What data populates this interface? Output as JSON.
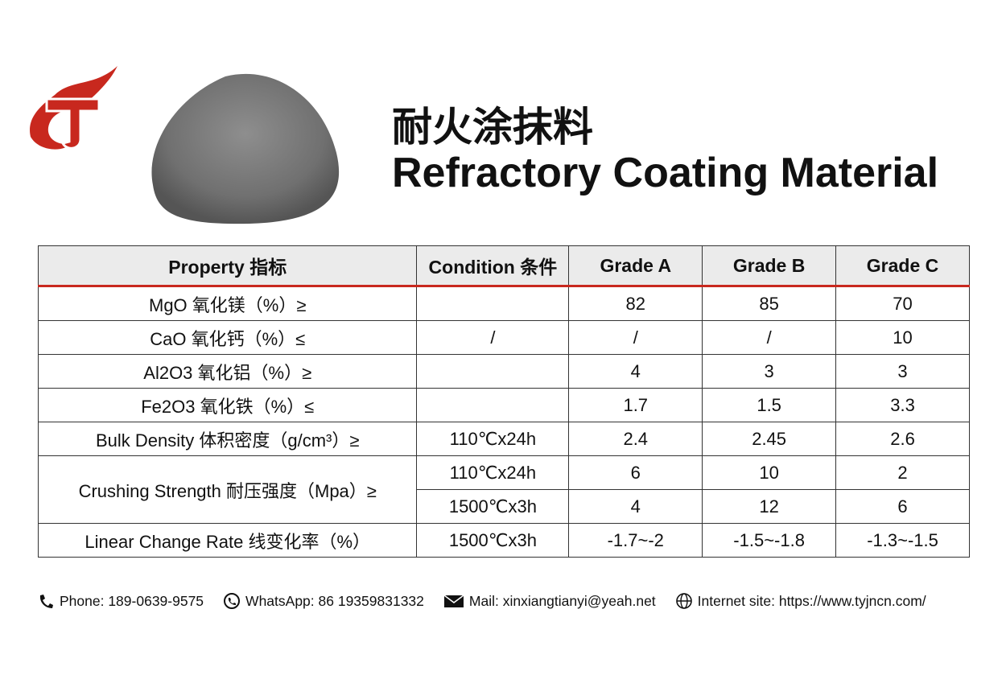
{
  "header": {
    "title_cn": "耐火涂抹料",
    "title_en": "Refractory Coating Material"
  },
  "table": {
    "columns": [
      "Property 指标",
      "Condition 条件",
      "Grade A",
      "Grade B",
      "Grade C"
    ],
    "rows": [
      {
        "property": "MgO 氧化镁（%）≥",
        "values": [
          82,
          85,
          70
        ]
      },
      {
        "property": "CaO 氧化钙（%）≤",
        "condition": "/",
        "values": [
          "/",
          "/",
          10
        ]
      },
      {
        "property": "Al2O3 氧化铝（%）≥",
        "values": [
          4,
          3,
          3
        ]
      },
      {
        "property": "Fe2O3 氧化铁（%）≤",
        "values": [
          1.7,
          1.5,
          3.3
        ]
      },
      {
        "property": "Bulk Density 体积密度（g/cm³）≥",
        "condition": "110℃x24h",
        "values": [
          2.4,
          2.45,
          2.6
        ]
      },
      {
        "property": "Crushing Strength 耐压强度（Mpa）≥",
        "sub": [
          {
            "condition": "110℃x24h",
            "values": [
              6,
              10,
              2
            ]
          },
          {
            "condition": "1500℃x3h",
            "values": [
              4,
              12,
              6
            ]
          }
        ]
      },
      {
        "property": "Linear Change Rate 线变化率（%）",
        "condition": "1500℃x3h",
        "values": [
          "-1.7~-2",
          "-1.5~-1.8",
          "-1.3~-1.5"
        ]
      }
    ]
  },
  "contacts": [
    "Phone: 189-0639-9575",
    "WhatsApp: 86 19359831332",
    "Mail: xinxiangtianyi@yeah.net",
    "Internet site: https://www.tyjncn.com/"
  ]
}
